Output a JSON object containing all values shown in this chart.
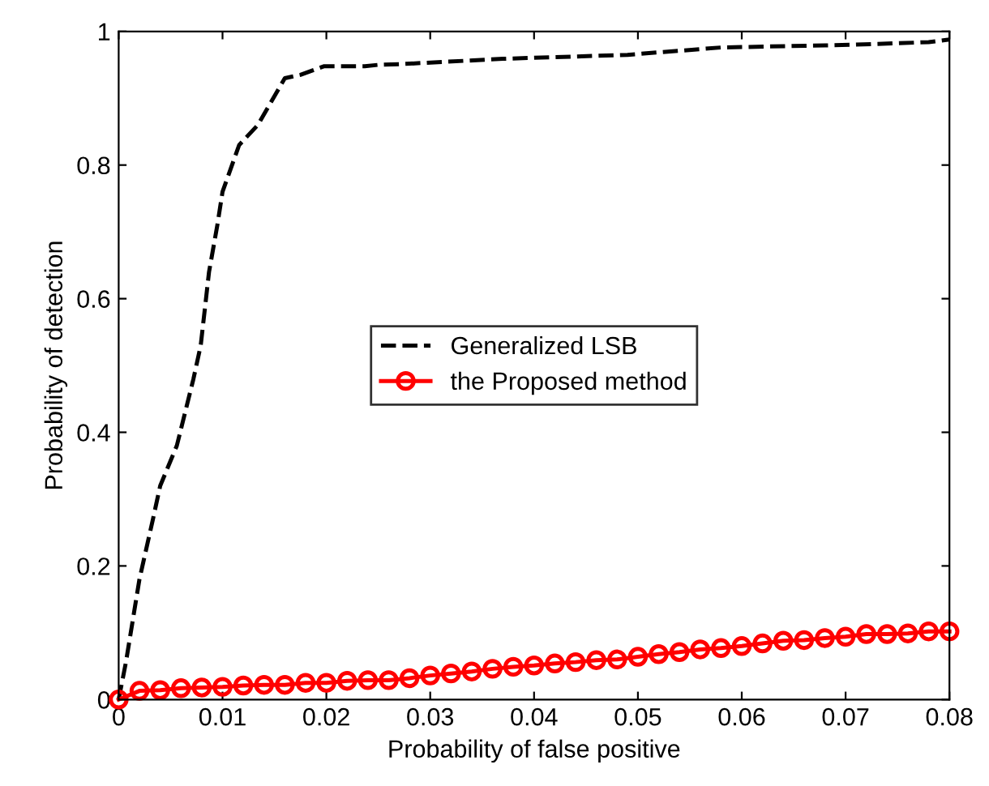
{
  "chart_data": {
    "type": "line",
    "xlabel": "Probability of false positive",
    "ylabel": "Probability of detection",
    "xlim": [
      0,
      0.08
    ],
    "ylim": [
      0,
      1
    ],
    "xticks": [
      0,
      0.01,
      0.02,
      0.03,
      0.04,
      0.05,
      0.06,
      0.07,
      0.08
    ],
    "yticks": [
      0,
      0.2,
      0.4,
      0.6,
      0.8,
      1
    ],
    "grid": false,
    "legend": "center",
    "series": [
      {
        "name": "Generalized LSB",
        "color": "#000000",
        "line_style": "dashed",
        "marker": "none",
        "x": [
          0,
          0.0007,
          0.002,
          0.0033,
          0.004,
          0.0056,
          0.0064,
          0.0072,
          0.0079,
          0.0087,
          0.0095,
          0.01,
          0.0116,
          0.0134,
          0.016,
          0.0175,
          0.0198,
          0.0237,
          0.025,
          0.027,
          0.037,
          0.049,
          0.058,
          0.0706,
          0.078,
          0.08
        ],
        "values": [
          0,
          0.056,
          0.18,
          0.27,
          0.32,
          0.38,
          0.43,
          0.48,
          0.53,
          0.64,
          0.71,
          0.76,
          0.83,
          0.86,
          0.93,
          0.935,
          0.948,
          0.948,
          0.95,
          0.951,
          0.959,
          0.965,
          0.976,
          0.98,
          0.984,
          0.988
        ]
      },
      {
        "name": "the Proposed method",
        "color": "#ff0000",
        "line_style": "solid",
        "marker": "circle",
        "x": [
          0,
          0.002,
          0.004,
          0.006,
          0.008,
          0.01,
          0.012,
          0.014,
          0.016,
          0.018,
          0.02,
          0.022,
          0.024,
          0.026,
          0.028,
          0.03,
          0.032,
          0.034,
          0.036,
          0.038,
          0.04,
          0.042,
          0.044,
          0.046,
          0.048,
          0.05,
          0.052,
          0.054,
          0.056,
          0.058,
          0.06,
          0.062,
          0.064,
          0.066,
          0.068,
          0.07,
          0.072,
          0.074,
          0.076,
          0.078,
          0.08
        ],
        "values": [
          0,
          0.013,
          0.014,
          0.017,
          0.018,
          0.019,
          0.021,
          0.022,
          0.022,
          0.025,
          0.025,
          0.028,
          0.029,
          0.029,
          0.032,
          0.036,
          0.039,
          0.042,
          0.046,
          0.049,
          0.051,
          0.054,
          0.056,
          0.059,
          0.06,
          0.064,
          0.068,
          0.071,
          0.075,
          0.077,
          0.08,
          0.084,
          0.088,
          0.089,
          0.092,
          0.094,
          0.098,
          0.098,
          0.099,
          0.102,
          0.102
        ]
      }
    ]
  }
}
